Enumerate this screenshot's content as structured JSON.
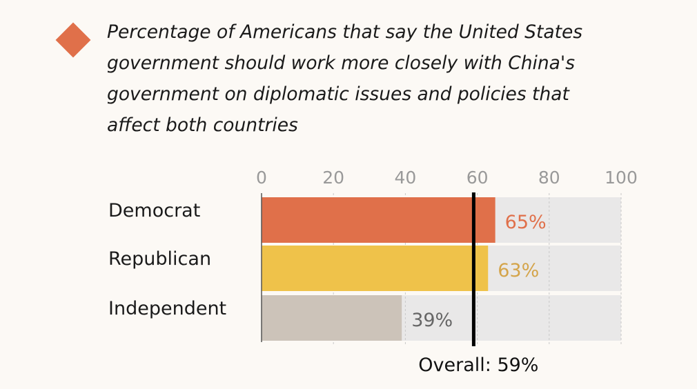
{
  "chart_data": {
    "type": "bar",
    "orientation": "horizontal",
    "title": "Percentage of Americans that say the United States government should work more closely with China's government on diplomatic issues and policies that affect both countries",
    "categories": [
      "Democrat",
      "Republican",
      "Independent"
    ],
    "values": [
      65,
      63,
      39
    ],
    "value_labels": [
      "65%",
      "63%",
      "39%"
    ],
    "colors": [
      "#e0704a",
      "#efc24a",
      "#ccc3b9"
    ],
    "label_colors": [
      "#e0704a",
      "#d4a44a",
      "#666666"
    ],
    "xlim": [
      0,
      100
    ],
    "xticks": [
      0,
      20,
      40,
      60,
      80,
      100
    ],
    "grid": true,
    "reference_line": {
      "value": 59,
      "label": "Overall: 59%"
    },
    "xlabel": "",
    "ylabel": ""
  }
}
